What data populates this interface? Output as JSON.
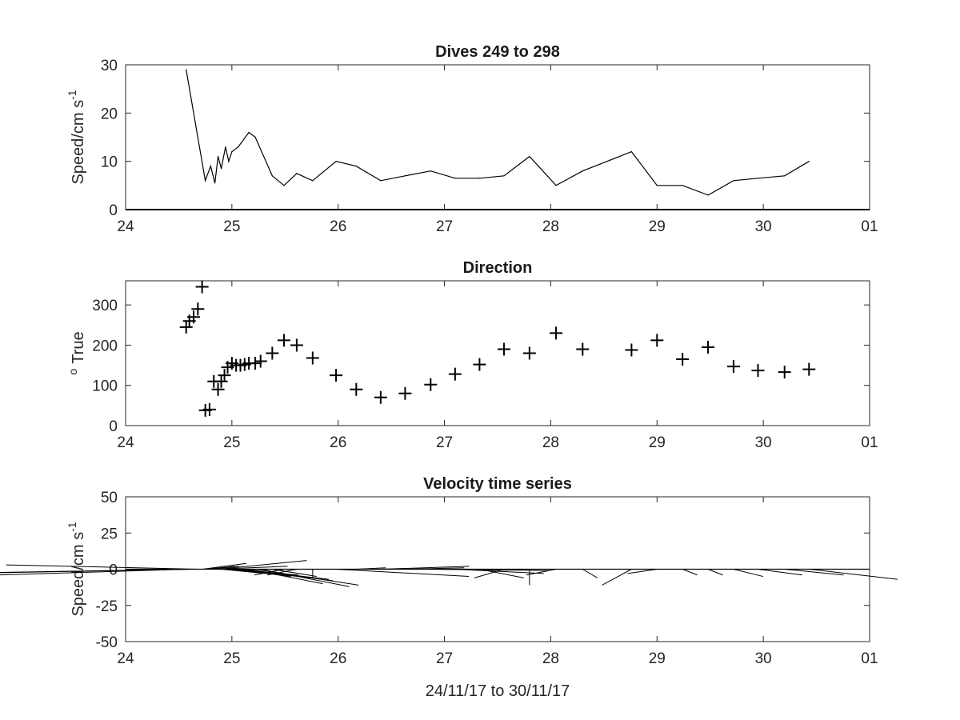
{
  "figure": {
    "xlabel": "24/11/17 to 30/11/17"
  },
  "chart_data": [
    {
      "type": "line",
      "title": "Dives 249 to 298",
      "ylabel": "Speed/cm s",
      "ylabel_exponent": "-1",
      "xlim": [
        24,
        31
      ],
      "ylim": [
        0,
        30
      ],
      "x_tick_labels": [
        "24",
        "25",
        "26",
        "27",
        "28",
        "29",
        "30",
        "01"
      ],
      "y_ticks": [
        0,
        10,
        20,
        30
      ],
      "reference_line": 0,
      "color": "#000000",
      "x": [
        24.57,
        24.75,
        24.8,
        24.84,
        24.87,
        24.9,
        24.94,
        24.97,
        25.0,
        25.06,
        25.16,
        25.22,
        25.38,
        25.49,
        25.61,
        25.76,
        25.98,
        26.17,
        26.4,
        26.63,
        26.87,
        27.1,
        27.33,
        27.56,
        27.8,
        28.05,
        28.3,
        28.53,
        28.76,
        29.0,
        29.24,
        29.48,
        29.72,
        29.95,
        30.2,
        30.43
      ],
      "y": [
        29.0,
        6.0,
        9.0,
        5.5,
        11.0,
        8.5,
        13.0,
        10.0,
        12.0,
        13.0,
        16.0,
        15.0,
        7.0,
        5.0,
        7.5,
        6.0,
        10.0,
        9.0,
        6.0,
        7.0,
        8.0,
        6.5,
        6.5,
        7.0,
        11.0,
        5.0,
        8.0,
        10.0,
        12.0,
        5.0,
        5.0,
        3.0,
        6.0,
        6.5,
        7.0,
        10.0
      ]
    },
    {
      "type": "scatter",
      "title": "Direction",
      "ylabel": "True",
      "ylabel_prefix": "o",
      "marker": "+",
      "xlim": [
        24,
        31
      ],
      "ylim": [
        0,
        360
      ],
      "x_tick_labels": [
        "24",
        "25",
        "26",
        "27",
        "28",
        "29",
        "30",
        "01"
      ],
      "y_ticks": [
        0,
        100,
        200,
        300
      ],
      "color": "#000000",
      "x": [
        24.57,
        24.6,
        24.64,
        24.68,
        24.72,
        24.75,
        24.79,
        24.83,
        24.87,
        24.9,
        24.93,
        24.96,
        25.0,
        25.04,
        25.08,
        25.12,
        25.16,
        25.22,
        25.27,
        25.38,
        25.49,
        25.61,
        25.76,
        25.98,
        26.17,
        26.4,
        26.63,
        26.87,
        27.1,
        27.33,
        27.56,
        27.8,
        28.05,
        28.3,
        28.76,
        29.0,
        29.24,
        29.48,
        29.72,
        29.95,
        30.2,
        30.43
      ],
      "y": [
        245,
        260,
        270,
        290,
        345,
        38,
        40,
        110,
        90,
        110,
        125,
        145,
        155,
        150,
        150,
        152,
        155,
        155,
        160,
        180,
        212,
        200,
        168,
        125,
        90,
        70,
        80,
        102,
        128,
        152,
        190,
        180,
        230,
        190,
        188,
        212,
        165,
        195,
        147,
        137,
        133,
        140
      ]
    },
    {
      "type": "quiver",
      "title": "Velocity time series",
      "ylabel": "Speed/cm s",
      "ylabel_exponent": "-1",
      "xlim": [
        24,
        31
      ],
      "ylim": [
        -50,
        50
      ],
      "x_tick_labels": [
        "24",
        "25",
        "26",
        "27",
        "28",
        "29",
        "30",
        "01"
      ],
      "y_ticks": [
        50,
        25,
        0,
        -25,
        -50
      ],
      "y_tick_labels": [
        "50",
        "25",
        "0",
        "-25",
        "-50"
      ],
      "reference_line": 0,
      "color": "#000000",
      "x": [
        24.57,
        24.6,
        24.64,
        24.68,
        24.72,
        24.75,
        24.79,
        24.83,
        24.87,
        24.9,
        24.93,
        24.96,
        25.0,
        25.04,
        25.08,
        25.12,
        25.16,
        25.22,
        25.27,
        25.38,
        25.49,
        25.61,
        25.76,
        25.98,
        26.17,
        26.4,
        26.63,
        26.87,
        27.1,
        27.33,
        27.56,
        27.8,
        28.05,
        28.3,
        28.76,
        29.0,
        29.24,
        29.48,
        29.72,
        29.95,
        30.2,
        30.43
      ],
      "u": [
        -29.0,
        -21.0,
        -18.0,
        -13.0,
        3.0,
        2.0,
        2.0,
        5.0,
        6.0,
        3.0,
        5.0,
        5.0,
        4.0,
        5.0,
        6.0,
        6.0,
        5.0,
        7.0,
        6.0,
        3.0,
        -2.0,
        -2.0,
        0.0,
        9.0,
        2.0,
        6.0,
        4.0,
        8.0,
        6.0,
        3.0,
        -2.0,
        0.0,
        -2.0,
        1.0,
        -2.0,
        -2.0,
        1.0,
        1.0,
        2.0,
        3.0,
        4.0,
        6.0
      ],
      "v": [
        -9.0,
        -4.0,
        -3.0,
        3.0,
        4.0,
        2.0,
        2.0,
        2.0,
        6.0,
        -3.0,
        -4.0,
        -5.0,
        -5.0,
        -6.0,
        -7.0,
        -8.0,
        -10.0,
        -11.0,
        -12.0,
        -5.0,
        -4.0,
        -4.0,
        -6.0,
        -5.0,
        1.0,
        2.0,
        1.0,
        -1.0,
        -3.0,
        -6.0,
        -6.0,
        -11.0,
        -4.0,
        -6.0,
        -11.0,
        -3.0,
        -4.0,
        -4.0,
        -5.0,
        -4.0,
        -4.0,
        -7.0
      ]
    }
  ]
}
